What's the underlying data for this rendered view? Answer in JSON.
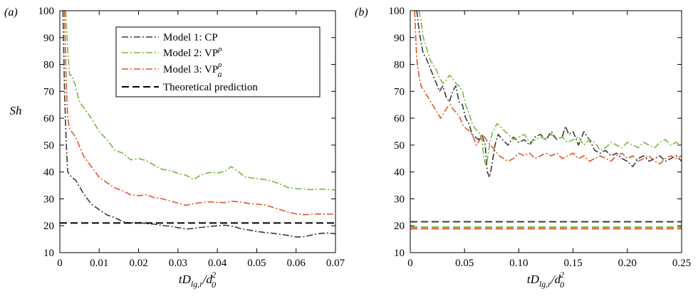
{
  "chart_data": [
    {
      "type": "line",
      "panel_label": "(a)",
      "ylabel": "Sh",
      "xlabel": "tD_{lg,r}/d_0^2",
      "xlim": [
        0,
        0.07
      ],
      "ylim": [
        10,
        100
      ],
      "xticks": [
        0,
        0.01,
        0.02,
        0.03,
        0.04,
        0.05,
        0.06,
        0.07
      ],
      "xtick_labels": [
        "0",
        "0.01",
        "0.02",
        "0.03",
        "0.04",
        "0.05",
        "0.06",
        "0.07"
      ],
      "yticks": [
        10,
        20,
        30,
        40,
        50,
        60,
        70,
        80,
        90,
        100
      ],
      "ytick_labels": [
        "10",
        "20",
        "30",
        "40",
        "50",
        "60",
        "70",
        "80",
        "90",
        "100"
      ],
      "legend": {
        "placement": "top-right",
        "entries": [
          {
            "name": "Model 1: CP",
            "color": "#3a3a3a",
            "dash": "dashdot"
          },
          {
            "name": "Model 2: VP^ρ",
            "color": "#77b83a",
            "dash": "dashdot"
          },
          {
            "name": "Model 3: VP_a^ρ",
            "color": "#e0552a",
            "dash": "dashdot"
          },
          {
            "name": "Theoretical prediction",
            "color": "#000000",
            "dash": "dashed"
          }
        ]
      },
      "series": [
        {
          "name": "Model 1: CP",
          "color": "#3a3a3a",
          "dash": "dashdot",
          "x": [
            0.0008,
            0.0012,
            0.0016,
            0.002,
            0.003,
            0.004,
            0.006,
            0.008,
            0.01,
            0.012,
            0.014,
            0.016,
            0.018,
            0.02,
            0.022,
            0.024,
            0.026,
            0.028,
            0.03,
            0.032,
            0.034,
            0.036,
            0.038,
            0.04,
            0.042,
            0.044,
            0.046,
            0.048,
            0.05,
            0.052,
            0.054,
            0.056,
            0.058,
            0.06,
            0.062,
            0.064,
            0.066,
            0.068,
            0.07
          ],
          "y": [
            100,
            70,
            52,
            40,
            38,
            37,
            32,
            28,
            26,
            24,
            23,
            21.5,
            21,
            21.2,
            20.8,
            20.6,
            20.1,
            19.8,
            19.3,
            18.8,
            19.0,
            19.4,
            19.7,
            20.0,
            20.2,
            19.8,
            18.9,
            18.4,
            17.9,
            17.5,
            17.2,
            16.8,
            16.4,
            15.8,
            15.9,
            16.6,
            17.1,
            17.3,
            17.0
          ]
        },
        {
          "name": "Model 2: VP^ρ",
          "color": "#77b83a",
          "dash": "dashdot",
          "x": [
            0.0015,
            0.002,
            0.0025,
            0.003,
            0.004,
            0.005,
            0.006,
            0.008,
            0.01,
            0.012,
            0.014,
            0.016,
            0.018,
            0.02,
            0.022,
            0.024,
            0.026,
            0.028,
            0.03,
            0.032,
            0.034,
            0.036,
            0.038,
            0.04,
            0.042,
            0.0435,
            0.045,
            0.047,
            0.05,
            0.052,
            0.054,
            0.056,
            0.058,
            0.06,
            0.062,
            0.064,
            0.066,
            0.068,
            0.07
          ],
          "y": [
            100,
            85,
            76,
            76,
            72,
            66,
            64,
            60,
            55,
            52,
            48,
            47,
            44.5,
            45,
            44.2,
            42.5,
            41,
            40.5,
            39.5,
            38.8,
            37.2,
            39,
            39.8,
            39.6,
            40.2,
            42,
            40.5,
            38.2,
            37.5,
            37.2,
            36.5,
            35.5,
            34.2,
            33.8,
            33.6,
            33.4,
            33.6,
            33.5,
            33.3
          ]
        },
        {
          "name": "Model 3: VP_a^ρ",
          "color": "#e0552a",
          "dash": "dashdot",
          "x": [
            0.0012,
            0.0016,
            0.002,
            0.0025,
            0.003,
            0.004,
            0.006,
            0.008,
            0.01,
            0.012,
            0.014,
            0.016,
            0.018,
            0.02,
            0.022,
            0.024,
            0.026,
            0.028,
            0.03,
            0.032,
            0.034,
            0.036,
            0.038,
            0.04,
            0.042,
            0.044,
            0.046,
            0.048,
            0.05,
            0.052,
            0.054,
            0.056,
            0.058,
            0.06,
            0.062,
            0.064,
            0.066,
            0.068,
            0.07
          ],
          "y": [
            100,
            75,
            60,
            56,
            55,
            53,
            46,
            42,
            38,
            36,
            34,
            33,
            31.5,
            31.2,
            31.5,
            30.5,
            30,
            29.2,
            28.4,
            27.6,
            28.2,
            28.6,
            28.9,
            28.7,
            28.6,
            29.1,
            28.8,
            28.3,
            28.0,
            27.8,
            26.9,
            26.0,
            25.0,
            24.4,
            24.1,
            24.3,
            24.4,
            24.3,
            24.3
          ]
        },
        {
          "name": "Theoretical prediction",
          "color": "#000000",
          "dash": "dashed",
          "x": [
            0,
            0.07
          ],
          "y": [
            21,
            21
          ]
        }
      ]
    },
    {
      "type": "line",
      "panel_label": "(b)",
      "ylabel": "",
      "xlabel": "tD_{lg,r}/d_0^2",
      "xlim": [
        0,
        0.25
      ],
      "ylim": [
        10,
        100
      ],
      "xticks": [
        0,
        0.05,
        0.1,
        0.15,
        0.2,
        0.25
      ],
      "xtick_labels": [
        "0",
        "0.05",
        "0.10",
        "0.15",
        "0.20",
        "0.25"
      ],
      "yticks": [
        10,
        20,
        30,
        40,
        50,
        60,
        70,
        80,
        90,
        100
      ],
      "ytick_labels": [
        "10",
        "20",
        "30",
        "40",
        "50",
        "60",
        "70",
        "80",
        "90",
        "100"
      ],
      "series": [
        {
          "name": "Model 1: CP",
          "color": "#3a3a3a",
          "dash": "dashdot",
          "x": [
            0.006,
            0.008,
            0.01,
            0.012,
            0.015,
            0.018,
            0.021,
            0.024,
            0.027,
            0.03,
            0.033,
            0.036,
            0.039,
            0.042,
            0.045,
            0.048,
            0.051,
            0.054,
            0.057,
            0.06,
            0.063,
            0.066,
            0.069,
            0.071,
            0.073,
            0.075,
            0.078,
            0.081,
            0.085,
            0.09,
            0.095,
            0.1,
            0.105,
            0.11,
            0.115,
            0.12,
            0.125,
            0.13,
            0.135,
            0.14,
            0.143,
            0.146,
            0.15,
            0.155,
            0.16,
            0.165,
            0.17,
            0.175,
            0.18,
            0.185,
            0.19,
            0.195,
            0.2,
            0.205,
            0.21,
            0.215,
            0.22,
            0.225,
            0.23,
            0.235,
            0.24,
            0.245,
            0.25
          ],
          "y": [
            100,
            93,
            88,
            84,
            82,
            79,
            76,
            73,
            70,
            72,
            68,
            66,
            70,
            72,
            66,
            65,
            60,
            58,
            54,
            53,
            52,
            54,
            50,
            40,
            38,
            42,
            50,
            54,
            52,
            50,
            53,
            51,
            52,
            50,
            53,
            54,
            52,
            55,
            52,
            53,
            57,
            54,
            55,
            50,
            55,
            52,
            48,
            47,
            48,
            46,
            47,
            45,
            44,
            42,
            45,
            46,
            44,
            45,
            46,
            44,
            45,
            46,
            44
          ]
        },
        {
          "name": "Model 2: VP^ρ",
          "color": "#77b83a",
          "dash": "dashdot",
          "x": [
            0.008,
            0.01,
            0.012,
            0.015,
            0.018,
            0.021,
            0.024,
            0.027,
            0.03,
            0.033,
            0.036,
            0.039,
            0.042,
            0.045,
            0.048,
            0.051,
            0.054,
            0.057,
            0.06,
            0.063,
            0.066,
            0.068,
            0.07,
            0.073,
            0.076,
            0.08,
            0.085,
            0.09,
            0.095,
            0.1,
            0.105,
            0.11,
            0.115,
            0.12,
            0.125,
            0.13,
            0.135,
            0.14,
            0.145,
            0.15,
            0.155,
            0.16,
            0.165,
            0.17,
            0.175,
            0.18,
            0.185,
            0.19,
            0.195,
            0.2,
            0.205,
            0.21,
            0.215,
            0.22,
            0.225,
            0.23,
            0.235,
            0.24,
            0.245,
            0.25
          ],
          "y": [
            100,
            96,
            90,
            86,
            82,
            80,
            78,
            75,
            73,
            74,
            76,
            75,
            73,
            72,
            70,
            65,
            62,
            58,
            56,
            55,
            52,
            45,
            42,
            50,
            55,
            58,
            56,
            54,
            52,
            53,
            54,
            51,
            52,
            53,
            52,
            54,
            52,
            53,
            51,
            52,
            53,
            50,
            52,
            51,
            48,
            49,
            51,
            50,
            49,
            51,
            50,
            49,
            51,
            50,
            49,
            51,
            52,
            50,
            51,
            50
          ]
        },
        {
          "name": "Model 3: VP_a^ρ",
          "color": "#e0552a",
          "dash": "dashdot",
          "x": [
            0.004,
            0.006,
            0.008,
            0.01,
            0.013,
            0.016,
            0.019,
            0.022,
            0.025,
            0.028,
            0.031,
            0.034,
            0.037,
            0.04,
            0.043,
            0.046,
            0.049,
            0.052,
            0.055,
            0.058,
            0.061,
            0.064,
            0.067,
            0.07,
            0.074,
            0.078,
            0.082,
            0.086,
            0.09,
            0.095,
            0.1,
            0.105,
            0.11,
            0.115,
            0.12,
            0.125,
            0.13,
            0.135,
            0.14,
            0.145,
            0.15,
            0.155,
            0.16,
            0.165,
            0.17,
            0.175,
            0.18,
            0.185,
            0.19,
            0.195,
            0.2,
            0.205,
            0.21,
            0.215,
            0.22,
            0.225,
            0.23,
            0.235,
            0.24,
            0.245,
            0.25
          ],
          "y": [
            100,
            82,
            76,
            72,
            70,
            68,
            66,
            64,
            62,
            60,
            62,
            64,
            65,
            63,
            62,
            60,
            57,
            56,
            55,
            53,
            50,
            52,
            54,
            52,
            50,
            48,
            46,
            45,
            44,
            45,
            47,
            46,
            47,
            45,
            46,
            47,
            46,
            47,
            45,
            46,
            47,
            45,
            46,
            44,
            45,
            46,
            45,
            44,
            46,
            47,
            45,
            46,
            44,
            45,
            46,
            44,
            43,
            45,
            46,
            45,
            46
          ]
        },
        {
          "name": "",
          "color": "#3a3a3a",
          "dash": "dashed",
          "x": [
            0,
            0.25
          ],
          "y": [
            21.5,
            21.5
          ]
        },
        {
          "name": "",
          "color": "#77b83a",
          "dash": "dashed",
          "x": [
            0,
            0.25
          ],
          "y": [
            19.5,
            19.5
          ]
        },
        {
          "name": "",
          "color": "#e0552a",
          "dash": "dashed",
          "x": [
            0,
            0.25
          ],
          "y": [
            18.9,
            18.9
          ]
        }
      ]
    }
  ]
}
